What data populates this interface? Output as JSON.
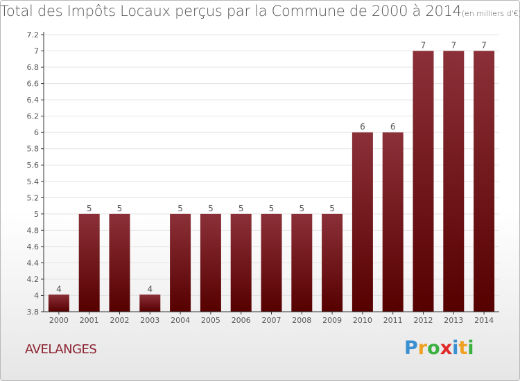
{
  "header": {
    "title": "Total des Impôts Locaux perçus par la Commune de 2000 à 2014",
    "unit": "(en milliers d'€)"
  },
  "footer": {
    "commune": "AVELANGES",
    "logo_letters": [
      "P",
      "r",
      "o",
      "x",
      "i",
      "t",
      "i"
    ],
    "logo_colors": [
      "#3a8fd0",
      "#f0a020",
      "#3ab040",
      "#e02828",
      "#3a8fd0",
      "#f0a020",
      "#3ab040"
    ]
  },
  "colors": {
    "bar_top": "#8b3038",
    "bar_bottom": "#560000",
    "axis": "#333333",
    "grid": "#e3e3e3",
    "text": "#555555"
  },
  "chart_data": {
    "type": "bar",
    "title": "Total des Impôts Locaux perçus par la Commune de 2000 à 2014",
    "subtitle": "(en milliers d'€)",
    "xlabel": "",
    "ylabel": "",
    "categories": [
      "2000",
      "2001",
      "2002",
      "2003",
      "2004",
      "2005",
      "2006",
      "2007",
      "2008",
      "2009",
      "2010",
      "2011",
      "2012",
      "2013",
      "2014"
    ],
    "values": [
      4.01,
      5,
      5,
      4.01,
      5,
      5,
      5,
      5,
      5,
      5,
      6,
      6,
      7,
      7,
      7
    ],
    "data_labels": [
      "4",
      "5",
      "5",
      "4",
      "5",
      "5",
      "5",
      "5",
      "5",
      "5",
      "6",
      "6",
      "7",
      "7",
      "7"
    ],
    "ylim": [
      3.8,
      7.2
    ],
    "yticks": [
      3.8,
      4,
      4.2,
      4.4,
      4.6,
      4.8,
      5,
      5.2,
      5.4,
      5.6,
      5.8,
      6,
      6.2,
      6.4,
      6.6,
      6.8,
      7,
      7.2
    ],
    "ytick_labels": [
      "3.8",
      "4",
      "4.2",
      "4.4",
      "4.6",
      "4.8",
      "5",
      "5.2",
      "5.4",
      "5.6",
      "5.8",
      "6",
      "6.2",
      "6.4",
      "6.6",
      "6.8",
      "7",
      "7.2"
    ],
    "grid": true
  }
}
